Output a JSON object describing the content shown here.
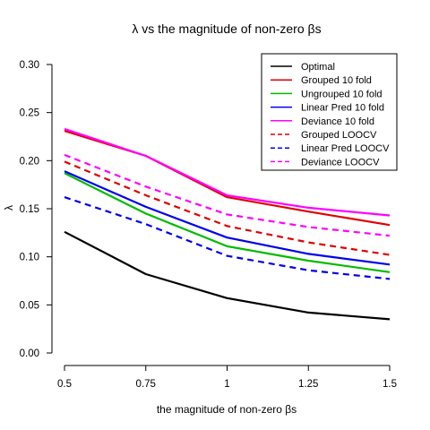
{
  "chart_data": {
    "type": "line",
    "title": "λ vs the magnitude of non-zero βs",
    "xlabel": "the magnitude of non-zero βs",
    "ylabel": "λ",
    "x": [
      0.5,
      0.75,
      1,
      1.25,
      1.5
    ],
    "x_tick_labels": [
      "0.5",
      "0.75",
      "1",
      "1.25",
      "1.5"
    ],
    "y_ticks": [
      0.0,
      0.05,
      0.1,
      0.15,
      0.2,
      0.25,
      0.3
    ],
    "y_tick_labels": [
      "0.00",
      "0.05",
      "0.10",
      "0.15",
      "0.20",
      "0.25",
      "0.30"
    ],
    "xlim": [
      0.5,
      1.5
    ],
    "ylim": [
      0,
      0.3
    ],
    "legend_position": "top-right",
    "series": [
      {
        "name": "Optimal",
        "values": [
          0.126,
          0.082,
          0.057,
          0.042,
          0.035
        ],
        "color": "#000000",
        "style": "solid"
      },
      {
        "name": "Grouped 10 fold",
        "values": [
          0.231,
          0.205,
          0.162,
          0.147,
          0.133
        ],
        "color": "#e00000",
        "style": "solid"
      },
      {
        "name": "Ungrouped 10 fold",
        "values": [
          0.187,
          0.145,
          0.111,
          0.096,
          0.084
        ],
        "color": "#00bb00",
        "style": "solid"
      },
      {
        "name": "Linear Pred 10 fold",
        "values": [
          0.189,
          0.152,
          0.12,
          0.103,
          0.092
        ],
        "color": "#0000ee",
        "style": "solid"
      },
      {
        "name": "Deviance 10 fold",
        "values": [
          0.233,
          0.205,
          0.164,
          0.151,
          0.143
        ],
        "color": "#ff00ff",
        "style": "solid"
      },
      {
        "name": "Grouped LOOCV",
        "values": [
          0.199,
          0.164,
          0.132,
          0.115,
          0.102
        ],
        "color": "#e00000",
        "style": "dashed"
      },
      {
        "name": "Linear Pred LOOCV",
        "values": [
          0.162,
          0.134,
          0.101,
          0.086,
          0.077
        ],
        "color": "#0000ee",
        "style": "dashed"
      },
      {
        "name": "Deviance LOOCV",
        "values": [
          0.206,
          0.173,
          0.144,
          0.131,
          0.122
        ],
        "color": "#ff00ff",
        "style": "dashed"
      }
    ]
  }
}
